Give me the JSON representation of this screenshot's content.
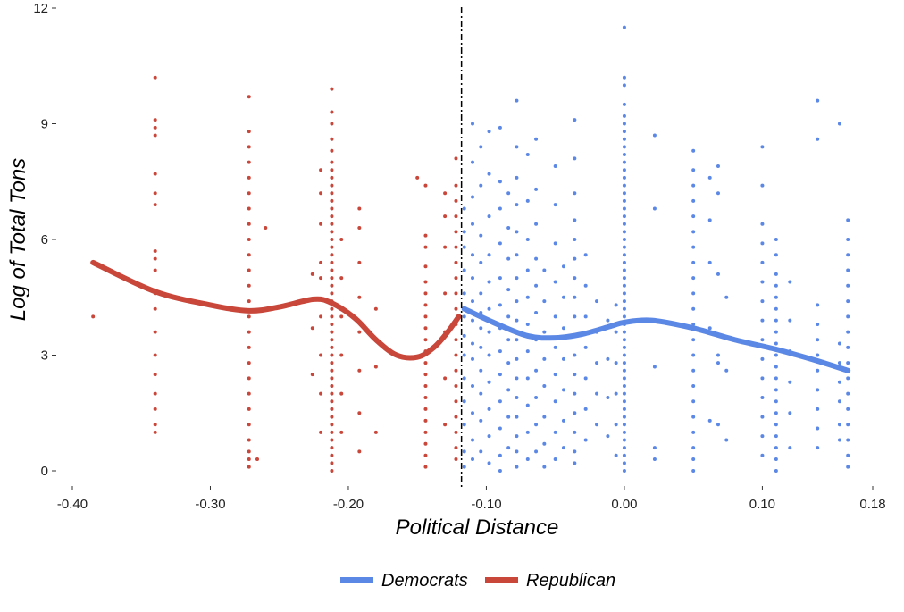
{
  "chart_data": {
    "type": "scatter",
    "title": "",
    "xlabel": "Political Distance",
    "ylabel": "Log of Total Tons",
    "xlim": [
      -0.4,
      0.18
    ],
    "ylim": [
      0,
      12
    ],
    "x_ticks": [
      -0.4,
      -0.3,
      -0.2,
      -0.1,
      0.0,
      0.1,
      0.18
    ],
    "x_tick_labels": [
      "-0.40",
      "-0.30",
      "-0.20",
      "-0.10",
      "0.00",
      "0.10",
      "0.18"
    ],
    "y_ticks": [
      0,
      3,
      6,
      9,
      12
    ],
    "y_tick_labels": [
      "0",
      "3",
      "6",
      "9",
      "12"
    ],
    "grid": false,
    "legend_position": "bottom",
    "cutoff_line": {
      "x": -0.118,
      "style": "dash-dot",
      "color": "#000000"
    },
    "series": [
      {
        "name": "Democrats",
        "color": "#5b87e5",
        "groups": [
          {
            "x": -0.116,
            "y": [
              0.1,
              0.5,
              1.2,
              1.8,
              2.4,
              3.0,
              3.5,
              4.0,
              4.6,
              5.2,
              5.8,
              6.2,
              6.8
            ]
          },
          {
            "x": -0.11,
            "y": [
              0.3,
              0.8,
              1.5,
              2.2,
              2.9,
              3.3,
              3.9,
              4.4,
              5.0,
              5.6,
              6.4,
              7.1,
              8.0,
              9.0
            ]
          },
          {
            "x": -0.104,
            "y": [
              0.5,
              1.3,
              2.0,
              2.6,
              3.2,
              3.7,
              4.1,
              4.6,
              5.4,
              6.1,
              7.4,
              8.4
            ]
          },
          {
            "x": -0.098,
            "y": [
              0.2,
              0.9,
              1.6,
              2.3,
              3.0,
              3.6,
              4.2,
              4.9,
              5.6,
              6.6,
              7.7,
              8.8
            ]
          },
          {
            "x": -0.09,
            "y": [
              0.0,
              0.4,
              1.1,
              1.8,
              2.5,
              3.1,
              3.7,
              4.3,
              5.0,
              5.9,
              6.8,
              7.5,
              8.9
            ]
          },
          {
            "x": -0.084,
            "y": [
              0.6,
              1.4,
              2.1,
              2.8,
              3.4,
              4.0,
              4.7,
              5.5,
              6.3,
              7.2
            ]
          },
          {
            "x": -0.078,
            "y": [
              0.1,
              0.5,
              0.9,
              1.4,
              1.9,
              2.4,
              2.9,
              3.4,
              3.9,
              4.4,
              5.0,
              5.6,
              6.2,
              6.9,
              7.6,
              8.4,
              9.6
            ]
          },
          {
            "x": -0.07,
            "y": [
              0.3,
              1.0,
              1.7,
              2.4,
              3.1,
              3.8,
              4.5,
              5.2,
              6.0,
              7.0,
              8.2
            ]
          },
          {
            "x": -0.064,
            "y": [
              0.5,
              1.2,
              1.9,
              2.6,
              3.4,
              4.1,
              4.8,
              5.5,
              6.4,
              7.3,
              8.6
            ]
          },
          {
            "x": -0.058,
            "y": [
              0.1,
              0.7,
              1.4,
              2.2,
              2.9,
              3.6,
              4.4,
              5.2
            ]
          },
          {
            "x": -0.05,
            "y": [
              0.3,
              1.0,
              1.8,
              2.5,
              3.2,
              4.0,
              4.9,
              5.9,
              6.9,
              7.9
            ]
          },
          {
            "x": -0.044,
            "y": [
              0.6,
              1.3,
              2.1,
              2.9,
              3.7,
              4.5,
              5.3
            ]
          },
          {
            "x": -0.036,
            "y": [
              0.2,
              0.5,
              1.0,
              1.5,
              2.0,
              2.5,
              3.0,
              3.5,
              4.0,
              4.5,
              5.0,
              5.5,
              6.0,
              6.5,
              7.2,
              8.1,
              9.1
            ]
          },
          {
            "x": -0.028,
            "y": [
              0.8,
              1.6,
              2.4,
              3.2,
              4.0,
              4.8,
              5.6
            ]
          },
          {
            "x": -0.02,
            "y": [
              1.2,
              2.0,
              2.8,
              3.6,
              4.4
            ]
          },
          {
            "x": -0.012,
            "y": [
              0.9,
              1.9,
              2.9,
              3.9
            ]
          },
          {
            "x": -0.006,
            "y": [
              0.4,
              1.2,
              2.0,
              2.8,
              3.6,
              4.3
            ]
          },
          {
            "x": 0.0,
            "y": [
              0.0,
              0.2,
              0.4,
              0.6,
              0.8,
              1.0,
              1.2,
              1.4,
              1.6,
              1.8,
              2.0,
              2.2,
              2.4,
              2.6,
              2.8,
              3.0,
              3.2,
              3.4,
              3.6,
              3.8,
              4.0,
              4.2,
              4.4,
              4.6,
              4.8,
              5.0,
              5.2,
              5.4,
              5.6,
              5.8,
              6.0,
              6.2,
              6.4,
              6.6,
              6.8,
              7.0,
              7.2,
              7.4,
              7.6,
              7.8,
              8.0,
              8.2,
              8.4,
              8.6,
              8.8,
              9.0,
              9.2,
              9.5,
              10.0,
              10.2,
              11.5
            ]
          },
          {
            "x": 0.022,
            "y": [
              0.3,
              0.6,
              2.7,
              6.8,
              8.7
            ]
          },
          {
            "x": 0.05,
            "y": [
              0.0,
              0.3,
              0.6,
              1.0,
              1.4,
              1.8,
              2.2,
              2.6,
              3.0,
              3.4,
              3.8,
              4.2,
              4.6,
              5.0,
              5.4,
              5.8,
              6.2,
              6.6,
              7.0,
              7.4,
              7.8,
              8.3
            ]
          },
          {
            "x": 0.062,
            "y": [
              1.3,
              3.7,
              5.4,
              6.5,
              7.6
            ]
          },
          {
            "x": 0.068,
            "y": [
              1.2,
              2.8,
              3.0,
              5.1,
              7.2,
              7.9
            ]
          },
          {
            "x": 0.074,
            "y": [
              0.8,
              2.6,
              4.5
            ]
          },
          {
            "x": 0.1,
            "y": [
              0.4,
              0.9,
              1.4,
              1.9,
              2.4,
              2.9,
              3.4,
              3.9,
              4.4,
              4.9,
              5.4,
              5.9,
              6.4,
              7.4,
              8.4
            ]
          },
          {
            "x": 0.11,
            "y": [
              0.0,
              0.3,
              0.6,
              0.9,
              1.2,
              1.5,
              1.8,
              2.1,
              2.4,
              2.7,
              3.0,
              3.3,
              3.6,
              3.9,
              4.2,
              4.5,
              4.8,
              5.1,
              5.6,
              6.0
            ]
          },
          {
            "x": 0.12,
            "y": [
              0.6,
              1.5,
              2.3,
              3.1,
              3.9,
              4.9
            ]
          },
          {
            "x": 0.14,
            "y": [
              0.6,
              1.1,
              1.6,
              2.1,
              2.6,
              3.0,
              3.4,
              3.8,
              4.3,
              8.6,
              9.6
            ]
          },
          {
            "x": 0.156,
            "y": [
              0.8,
              1.2,
              1.8,
              2.3,
              2.8,
              3.3,
              9.0
            ]
          },
          {
            "x": 0.162,
            "y": [
              0.1,
              0.4,
              0.8,
              1.2,
              1.6,
              2.0,
              2.4,
              2.8,
              3.2,
              3.6,
              4.0,
              4.4,
              4.8,
              5.2,
              5.6,
              6.0,
              6.5
            ]
          }
        ],
        "fit": {
          "x": [
            -0.116,
            -0.095,
            -0.07,
            -0.05,
            -0.03,
            -0.01,
            0.0,
            0.02,
            0.05,
            0.08,
            0.11,
            0.14,
            0.162
          ],
          "y": [
            4.2,
            3.85,
            3.5,
            3.45,
            3.55,
            3.75,
            3.85,
            3.9,
            3.7,
            3.4,
            3.15,
            2.85,
            2.6
          ]
        }
      },
      {
        "name": "Republican",
        "color": "#c8463a",
        "groups": [
          {
            "x": -0.385,
            "y": [
              4.0
            ]
          },
          {
            "x": -0.34,
            "y": [
              1.0,
              1.2,
              1.6,
              2.0,
              2.5,
              3.0,
              3.6,
              4.2,
              4.6,
              5.2,
              5.5,
              5.7,
              6.9,
              7.2,
              7.7,
              8.7,
              8.9,
              9.1,
              10.2
            ]
          },
          {
            "x": -0.272,
            "y": [
              0.1,
              0.3,
              0.5,
              0.8,
              1.2,
              1.6,
              2.0,
              2.4,
              2.8,
              3.2,
              3.6,
              4.0,
              4.4,
              4.8,
              5.2,
              5.6,
              6.0,
              6.4,
              6.8,
              7.2,
              7.6,
              8.0,
              8.4,
              8.8,
              9.7
            ]
          },
          {
            "x": -0.266,
            "y": [
              0.3
            ]
          },
          {
            "x": -0.26,
            "y": [
              6.3
            ]
          },
          {
            "x": -0.226,
            "y": [
              2.5,
              3.7,
              5.1
            ]
          },
          {
            "x": -0.22,
            "y": [
              1.0,
              2.0,
              3.0,
              4.0,
              5.0,
              5.4,
              6.4,
              7.2,
              7.8
            ]
          },
          {
            "x": -0.212,
            "y": [
              0.0,
              0.2,
              0.4,
              0.6,
              0.8,
              1.0,
              1.2,
              1.4,
              1.6,
              1.8,
              2.0,
              2.2,
              2.4,
              2.6,
              2.8,
              3.0,
              3.2,
              3.4,
              3.6,
              3.8,
              4.0,
              4.2,
              4.4,
              4.6,
              4.8,
              5.0,
              5.2,
              5.4,
              5.6,
              5.8,
              6.0,
              6.2,
              6.4,
              6.6,
              6.8,
              7.0,
              7.2,
              7.4,
              7.6,
              7.8,
              8.0,
              8.3,
              8.6,
              9.0,
              9.3,
              9.9
            ]
          },
          {
            "x": -0.205,
            "y": [
              1.0,
              2.0,
              3.0,
              4.0,
              5.0,
              6.0
            ]
          },
          {
            "x": -0.192,
            "y": [
              0.5,
              1.5,
              2.6,
              3.6,
              4.5,
              5.4,
              6.3,
              6.8
            ]
          },
          {
            "x": -0.18,
            "y": [
              1.0,
              2.7,
              4.2
            ]
          },
          {
            "x": -0.15,
            "y": [
              7.6
            ]
          },
          {
            "x": -0.144,
            "y": [
              0.1,
              0.4,
              0.7,
              1.0,
              1.3,
              1.6,
              1.9,
              2.2,
              2.5,
              2.8,
              3.1,
              3.4,
              3.7,
              4.0,
              4.3,
              4.6,
              4.9,
              5.3,
              5.8,
              6.1,
              7.4
            ]
          },
          {
            "x": -0.13,
            "y": [
              1.2,
              2.4,
              3.6,
              4.6,
              5.8,
              6.6,
              7.2
            ]
          },
          {
            "x": -0.122,
            "y": [
              0.3,
              0.6,
              1.0,
              1.4,
              1.8,
              2.2,
              2.6,
              3.0,
              3.4,
              3.8,
              4.2,
              4.6,
              5.0,
              5.4,
              5.8,
              6.2,
              6.6,
              7.0,
              7.4,
              8.1
            ]
          }
        ],
        "fit": {
          "x": [
            -0.385,
            -0.34,
            -0.3,
            -0.272,
            -0.25,
            -0.225,
            -0.212,
            -0.195,
            -0.18,
            -0.165,
            -0.15,
            -0.138,
            -0.128,
            -0.12
          ],
          "y": [
            5.4,
            4.65,
            4.3,
            4.15,
            4.25,
            4.45,
            4.35,
            3.95,
            3.4,
            3.0,
            2.95,
            3.2,
            3.6,
            4.0
          ]
        }
      }
    ]
  }
}
